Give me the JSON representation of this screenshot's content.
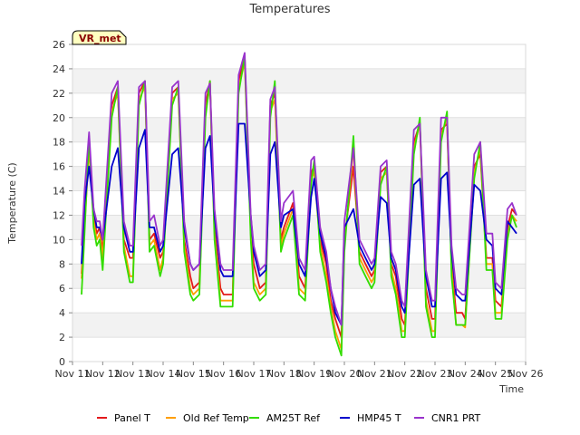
{
  "chart_data": {
    "type": "line",
    "title": "Temperatures",
    "xlabel": "Time",
    "ylabel": "Temperature (C)",
    "badge": "VR_met",
    "ylim": [
      0,
      26
    ],
    "yticks": [
      0,
      2,
      4,
      6,
      8,
      10,
      12,
      14,
      16,
      18,
      20,
      22,
      24,
      26
    ],
    "xlim": [
      0,
      15
    ],
    "xticks": [
      "Nov 11",
      "Nov 12",
      "Nov 13",
      "Nov 14",
      "Nov 15",
      "Nov 16",
      "Nov 17",
      "Nov 18",
      "Nov 19",
      "Nov 20",
      "Nov 21",
      "Nov 22",
      "Nov 23",
      "Nov 24",
      "Nov 25",
      "Nov 26"
    ],
    "grid": "horizontal bands",
    "legend_position": "bottom",
    "x": [
      0.3,
      0.4,
      0.55,
      0.7,
      0.8,
      0.9,
      1.0,
      1.3,
      1.5,
      1.7,
      1.9,
      2.0,
      2.2,
      2.4,
      2.55,
      2.7,
      2.9,
      3.0,
      3.3,
      3.5,
      3.7,
      3.9,
      4.0,
      4.2,
      4.4,
      4.55,
      4.7,
      4.9,
      5.0,
      5.3,
      5.5,
      5.7,
      5.9,
      6.0,
      6.2,
      6.4,
      6.55,
      6.7,
      6.9,
      7.0,
      7.3,
      7.5,
      7.7,
      7.9,
      8.0,
      8.2,
      8.4,
      8.55,
      8.7,
      8.9,
      9.0,
      9.3,
      9.5,
      9.7,
      9.9,
      10.0,
      10.2,
      10.4,
      10.55,
      10.7,
      10.9,
      11.0,
      11.3,
      11.5,
      11.7,
      11.9,
      12.0,
      12.2,
      12.4,
      12.55,
      12.7,
      12.9,
      13.0,
      13.3,
      13.5,
      13.7,
      13.9,
      14.0,
      14.2,
      14.4,
      14.55,
      14.7
    ],
    "series": [
      {
        "name": "Panel T",
        "color": "#e31a1c",
        "values": [
          7.2,
          11.5,
          18.0,
          12.0,
          10.5,
          11.0,
          9.0,
          21.0,
          22.5,
          10.0,
          8.5,
          8.5,
          22.0,
          23.0,
          10.0,
          10.5,
          8.5,
          9.0,
          22.0,
          22.5,
          10.0,
          7.0,
          6.0,
          6.5,
          21.0,
          23.0,
          11.0,
          6.0,
          5.5,
          5.5,
          23.0,
          25.0,
          11.0,
          8.0,
          6.0,
          6.5,
          21.0,
          22.0,
          10.0,
          11.0,
          13.0,
          7.0,
          6.0,
          15.5,
          16.0,
          10.0,
          8.0,
          5.0,
          3.5,
          2.0,
          10.0,
          16.0,
          9.0,
          8.0,
          7.0,
          7.5,
          15.5,
          16.0,
          8.0,
          7.0,
          3.5,
          3.0,
          18.0,
          19.5,
          6.0,
          3.5,
          3.5,
          19.0,
          19.5,
          8.0,
          4.0,
          4.0,
          3.5,
          16.0,
          17.0,
          8.5,
          8.5,
          5.0,
          4.5,
          11.0,
          12.5,
          12.0
        ]
      },
      {
        "name": "Old Ref Temp",
        "color": "#ff9e00",
        "values": [
          6.8,
          11.0,
          17.5,
          11.5,
          10.0,
          10.5,
          8.5,
          20.5,
          22.0,
          9.5,
          7.0,
          7.0,
          21.5,
          22.5,
          9.5,
          10.0,
          7.5,
          8.5,
          21.5,
          22.0,
          9.5,
          6.0,
          5.5,
          6.0,
          20.5,
          22.5,
          10.5,
          5.0,
          5.0,
          5.0,
          22.5,
          24.5,
          10.5,
          6.5,
          5.5,
          6.0,
          20.5,
          21.5,
          9.5,
          10.5,
          12.5,
          6.0,
          5.5,
          15.0,
          15.5,
          9.5,
          7.0,
          4.5,
          2.5,
          1.0,
          9.5,
          17.5,
          8.5,
          7.5,
          6.5,
          7.0,
          15.0,
          15.5,
          7.5,
          6.0,
          2.5,
          2.5,
          17.5,
          19.5,
          5.0,
          2.5,
          2.5,
          18.5,
          20.0,
          7.5,
          3.0,
          3.0,
          2.8,
          15.5,
          17.5,
          8.0,
          8.0,
          4.0,
          4.0,
          10.5,
          12.0,
          11.5
        ]
      },
      {
        "name": "AM25T Ref",
        "color": "#33dd00",
        "values": [
          5.5,
          10.5,
          18.5,
          11.0,
          9.5,
          10.0,
          7.5,
          20.0,
          22.5,
          9.0,
          6.5,
          6.5,
          21.0,
          23.0,
          9.0,
          9.5,
          7.0,
          8.0,
          21.0,
          22.5,
          9.0,
          5.5,
          5.0,
          5.5,
          20.0,
          23.0,
          10.0,
          4.5,
          4.5,
          4.5,
          22.0,
          25.0,
          10.0,
          6.0,
          5.0,
          5.5,
          20.0,
          23.0,
          9.0,
          10.0,
          12.0,
          5.5,
          5.0,
          14.5,
          16.5,
          9.0,
          6.5,
          4.0,
          2.0,
          0.5,
          9.0,
          18.5,
          8.0,
          7.0,
          6.0,
          6.5,
          14.5,
          16.0,
          7.0,
          5.5,
          2.0,
          2.0,
          17.0,
          20.0,
          4.5,
          2.0,
          2.0,
          18.0,
          20.5,
          7.0,
          3.0,
          3.0,
          3.0,
          15.0,
          18.0,
          7.5,
          7.5,
          3.5,
          3.5,
          10.0,
          12.0,
          11.0
        ]
      },
      {
        "name": "HMP45 T",
        "color": "#0000cc",
        "values": [
          8.0,
          13.0,
          16.0,
          12.5,
          11.0,
          11.0,
          10.0,
          16.0,
          17.5,
          11.0,
          9.0,
          9.0,
          17.5,
          19.0,
          11.0,
          11.0,
          9.0,
          9.5,
          17.0,
          17.5,
          11.0,
          8.0,
          7.5,
          8.0,
          17.5,
          18.5,
          12.0,
          7.5,
          7.0,
          7.0,
          19.5,
          19.5,
          12.0,
          9.0,
          7.0,
          7.5,
          17.0,
          18.0,
          11.0,
          12.0,
          12.5,
          8.0,
          7.0,
          13.5,
          15.0,
          10.5,
          8.5,
          6.0,
          4.0,
          3.0,
          11.0,
          12.5,
          9.5,
          8.5,
          7.5,
          8.0,
          13.5,
          13.0,
          8.5,
          7.5,
          4.5,
          4.0,
          14.5,
          15.0,
          7.0,
          4.5,
          4.5,
          15.0,
          15.5,
          9.0,
          5.5,
          5.0,
          5.0,
          14.5,
          14.0,
          10.0,
          9.5,
          6.0,
          5.5,
          11.5,
          11.0,
          10.5
        ]
      },
      {
        "name": "CNR1 PRT",
        "color": "#9933cc",
        "values": [
          9.5,
          14.0,
          18.8,
          12.5,
          11.5,
          11.5,
          10.0,
          22.0,
          23.0,
          11.5,
          9.5,
          9.5,
          22.5,
          23.0,
          11.5,
          12.0,
          9.5,
          10.0,
          22.5,
          23.0,
          11.5,
          8.0,
          7.5,
          8.0,
          22.0,
          22.8,
          12.5,
          8.0,
          7.5,
          7.5,
          23.5,
          25.3,
          12.0,
          9.5,
          7.5,
          8.0,
          21.5,
          22.5,
          11.5,
          13.0,
          14.0,
          8.5,
          7.5,
          16.5,
          16.8,
          11.0,
          9.0,
          6.0,
          4.5,
          3.0,
          11.5,
          17.5,
          10.0,
          9.0,
          8.0,
          8.5,
          16.0,
          16.5,
          9.0,
          8.0,
          5.0,
          4.5,
          19.0,
          19.5,
          7.5,
          5.0,
          5.0,
          20.0,
          20.0,
          9.5,
          6.0,
          5.5,
          5.5,
          17.0,
          18.0,
          10.5,
          10.5,
          6.5,
          6.0,
          12.5,
          13.0,
          12.0
        ]
      }
    ]
  }
}
